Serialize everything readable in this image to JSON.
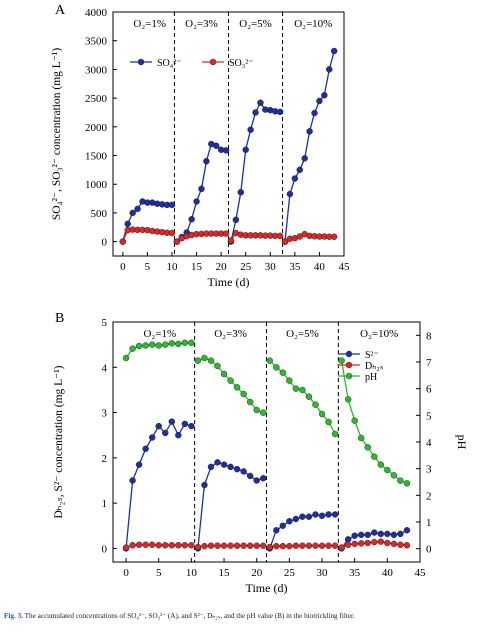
{
  "chart_data": [
    {
      "panel_label": "A",
      "type": "line",
      "ylabel": "SO₄²⁻, SO₃²⁻ concentration (mg L⁻¹)",
      "xlabel": "Time (d)",
      "xlim": [
        -2,
        45
      ],
      "ylim": [
        -250,
        4000
      ],
      "x_ticks": [
        0,
        5,
        10,
        15,
        20,
        25,
        30,
        35,
        40,
        45
      ],
      "y_ticks": [
        0,
        500,
        1000,
        1500,
        2000,
        2500,
        3000,
        3500,
        4000
      ],
      "phase_boundaries": [
        10.5,
        21.5,
        32.5
      ],
      "phase_labels": [
        "O₂=1%",
        "O₂=3%",
        "O₂=5%",
        "O₂=10%"
      ],
      "legend_position": "upper-left",
      "series": [
        {
          "name": "SO₄²⁻",
          "color": "#1f2fa0",
          "segments": [
            {
              "x": [
                0,
                1,
                2,
                3,
                4,
                5,
                6,
                7,
                8,
                9,
                10
              ],
              "y": [
                0,
                310,
                500,
                570,
                700,
                680,
                680,
                660,
                650,
                640,
                640
              ]
            },
            {
              "x": [
                11,
                12,
                13,
                14,
                15,
                16,
                17,
                18,
                19,
                20,
                21
              ],
              "y": [
                0,
                80,
                160,
                390,
                700,
                920,
                1400,
                1700,
                1670,
                1600,
                1590
              ]
            },
            {
              "x": [
                22,
                23,
                24,
                25,
                26,
                27,
                28,
                29,
                30,
                31,
                32
              ],
              "y": [
                0,
                380,
                860,
                1600,
                1950,
                2250,
                2420,
                2300,
                2290,
                2270,
                2260
              ]
            },
            {
              "x": [
                33,
                34,
                35,
                36,
                37,
                38,
                39,
                40,
                41,
                42,
                43
              ],
              "y": [
                0,
                830,
                1100,
                1250,
                1450,
                1920,
                2240,
                2450,
                2550,
                3000,
                3320
              ]
            }
          ]
        },
        {
          "name": "SO₃²⁻",
          "color": "#d42a2a",
          "segments": [
            {
              "x": [
                0,
                1,
                2,
                3,
                4,
                5,
                6,
                7,
                8,
                9,
                10
              ],
              "y": [
                0,
                200,
                210,
                205,
                205,
                200,
                185,
                175,
                165,
                155,
                150
              ]
            },
            {
              "x": [
                11,
                12,
                13,
                14,
                15,
                16,
                17,
                18,
                19,
                20,
                21
              ],
              "y": [
                0,
                60,
                95,
                115,
                130,
                135,
                140,
                140,
                140,
                140,
                140
              ]
            },
            {
              "x": [
                22,
                23,
                24,
                25,
                26,
                27,
                28,
                29,
                30,
                31,
                32
              ],
              "y": [
                20,
                150,
                120,
                110,
                110,
                110,
                110,
                105,
                105,
                100,
                100
              ]
            },
            {
              "x": [
                33,
                34,
                35,
                36,
                37,
                38,
                39,
                40,
                41,
                42,
                43
              ],
              "y": [
                0,
                50,
                60,
                90,
                130,
                100,
                95,
                90,
                90,
                85,
                85
              ]
            }
          ]
        }
      ]
    },
    {
      "panel_label": "B",
      "type": "line",
      "ylabel": "Dₕ₂ₛ, S²⁻ concentration (mg L⁻¹)",
      "y2label": "pH",
      "xlabel": "Time (d)",
      "xlim": [
        -2,
        45
      ],
      "ylim": [
        -0.3,
        5
      ],
      "y2lim": [
        -0.5,
        8.5
      ],
      "x_ticks": [
        0,
        5,
        10,
        15,
        20,
        25,
        30,
        35,
        40,
        45
      ],
      "y_ticks": [
        0,
        1,
        2,
        3,
        4,
        5
      ],
      "y2_ticks": [
        0,
        1,
        2,
        3,
        4,
        5,
        6,
        7,
        8
      ],
      "phase_boundaries": [
        10.5,
        21.5,
        32.5
      ],
      "phase_labels": [
        "O₂=1%",
        "O₂=3%",
        "O₂=5%",
        "O₂=10%"
      ],
      "legend_position": "upper-right",
      "series": [
        {
          "name": "S²⁻",
          "axis": "left",
          "color": "#1f2fa0",
          "segments": [
            {
              "x": [
                0,
                1,
                2,
                3,
                4,
                5,
                6,
                7,
                8,
                9,
                10
              ],
              "y": [
                0,
                1.5,
                1.85,
                2.2,
                2.45,
                2.7,
                2.55,
                2.8,
                2.5,
                2.75,
                2.7
              ]
            },
            {
              "x": [
                11,
                12,
                13,
                14,
                15,
                16,
                17,
                18,
                19,
                20,
                21
              ],
              "y": [
                0,
                1.4,
                1.8,
                1.9,
                1.85,
                1.8,
                1.75,
                1.7,
                1.6,
                1.5,
                1.55
              ]
            },
            {
              "x": [
                22,
                23,
                24,
                25,
                26,
                27,
                28,
                29,
                30,
                31,
                32
              ],
              "y": [
                0,
                0.4,
                0.5,
                0.6,
                0.65,
                0.7,
                0.7,
                0.75,
                0.72,
                0.75,
                0.75
              ]
            },
            {
              "x": [
                33,
                34,
                35,
                36,
                37,
                38,
                39,
                40,
                41,
                42,
                43
              ],
              "y": [
                0,
                0.2,
                0.28,
                0.3,
                0.3,
                0.35,
                0.32,
                0.32,
                0.3,
                0.32,
                0.4
              ]
            }
          ]
        },
        {
          "name": "Dₕ₂ₛ",
          "axis": "left",
          "color": "#d42a2a",
          "segments": [
            {
              "x": [
                0,
                1,
                2,
                3,
                4,
                5,
                6,
                7,
                8,
                9,
                10
              ],
              "y": [
                0.02,
                0.07,
                0.08,
                0.08,
                0.08,
                0.07,
                0.07,
                0.07,
                0.07,
                0.07,
                0.07
              ]
            },
            {
              "x": [
                11,
                12,
                13,
                14,
                15,
                16,
                17,
                18,
                19,
                20,
                21
              ],
              "y": [
                0.03,
                0.05,
                0.06,
                0.06,
                0.06,
                0.06,
                0.06,
                0.06,
                0.06,
                0.06,
                0.06
              ]
            },
            {
              "x": [
                22,
                23,
                24,
                25,
                26,
                27,
                28,
                29,
                30,
                31,
                32
              ],
              "y": [
                0.03,
                0.05,
                0.05,
                0.05,
                0.06,
                0.06,
                0.06,
                0.06,
                0.06,
                0.06,
                0.06
              ]
            },
            {
              "x": [
                33,
                34,
                35,
                36,
                37,
                38,
                39,
                40,
                41,
                42,
                43
              ],
              "y": [
                0.02,
                0.08,
                0.1,
                0.11,
                0.12,
                0.14,
                0.15,
                0.12,
                0.1,
                0.08,
                0.07
              ]
            }
          ]
        },
        {
          "name": "pH",
          "axis": "right",
          "color": "#2db82d",
          "segments": [
            {
              "x": [
                0,
                1,
                2,
                3,
                4,
                5,
                6,
                7,
                8,
                9,
                10
              ],
              "y": [
                7.15,
                7.5,
                7.6,
                7.62,
                7.65,
                7.62,
                7.65,
                7.7,
                7.68,
                7.72,
                7.72
              ]
            },
            {
              "x": [
                11,
                12,
                13,
                14,
                15,
                16,
                17,
                18,
                19,
                20,
                21
              ],
              "y": [
                7.05,
                7.15,
                7.05,
                6.85,
                6.55,
                6.3,
                6.05,
                5.8,
                5.5,
                5.2,
                5.1
              ]
            },
            {
              "x": [
                22,
                23,
                24,
                25,
                26,
                27,
                28,
                29,
                30,
                31,
                32
              ],
              "y": [
                7.05,
                6.8,
                6.6,
                6.3,
                6.0,
                5.95,
                5.7,
                5.4,
                5.05,
                4.75,
                4.3
              ]
            },
            {
              "x": [
                33,
                34,
                35,
                36,
                37,
                38,
                39,
                40,
                41,
                42,
                43
              ],
              "y": [
                7.05,
                5.6,
                4.8,
                4.15,
                3.8,
                3.45,
                3.15,
                2.95,
                2.75,
                2.55,
                2.45
              ]
            }
          ]
        }
      ]
    }
  ],
  "caption": {
    "label": "Fig. 3.",
    "text": "The accumulated concentrations of SO₄²⁻, SO₃²⁻ (A), and S²⁻, Dₕ₂ₛ, and the pH value (B) in the biotrickling filter."
  }
}
